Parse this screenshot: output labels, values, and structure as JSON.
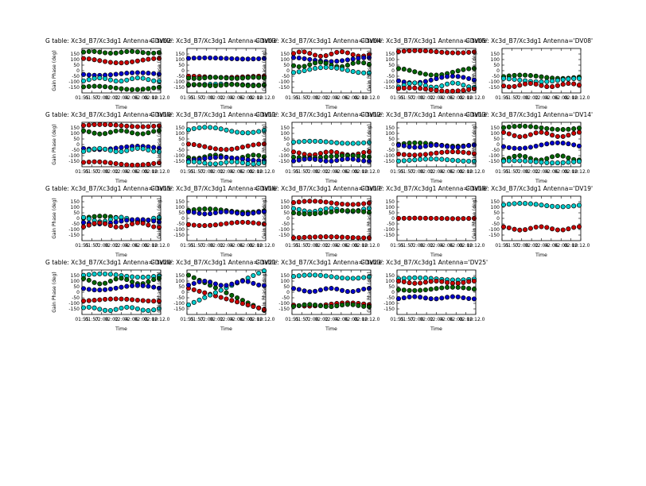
{
  "figure": {
    "background": "#ffffff",
    "series_colors": {
      "red": "#cc0000",
      "blue": "#0000cc",
      "green": "#006600",
      "cyan": "#00cccc"
    }
  },
  "chart_data": {
    "type": "scatter",
    "common": {
      "title_prefix": "G table: Xc3d_B7/Xc3dg1",
      "xlabel": "Time",
      "ylabel": "Gain Phase (deg)",
      "xlim": [
        0,
        1
      ],
      "ylim": [
        -200,
        200
      ],
      "xticks": [
        "01:55",
        "01:57",
        "02:00",
        "02:02",
        "02:04",
        "02:06",
        "02:08",
        "02:10",
        "02:12.0"
      ],
      "yticks": [
        150,
        100,
        50,
        0,
        -50,
        -100,
        -150
      ],
      "grid": false
    },
    "panels": [
      {
        "antenna": "Antenna='DV02'",
        "series": [
          {
            "color": "green",
            "base": 165,
            "amp": 8,
            "freq": 2
          },
          {
            "color": "red",
            "base": 90,
            "amp": 20,
            "freq": 1
          },
          {
            "color": "blue",
            "base": -30,
            "amp": 12,
            "freq": 1
          },
          {
            "color": "cyan",
            "base": -80,
            "amp": 15,
            "freq": 2
          },
          {
            "color": "green",
            "base": -155,
            "amp": 15,
            "freq": 1
          }
        ]
      },
      {
        "antenna": "Antenna='DV03'",
        "series": [
          {
            "color": "blue",
            "base": 110,
            "amp": 5,
            "freq": 1
          },
          {
            "color": "red",
            "base": -55,
            "amp": 6,
            "freq": 1
          },
          {
            "color": "green",
            "base": -65,
            "amp": 5,
            "freq": 2
          },
          {
            "color": "cyan",
            "base": -125,
            "amp": 5,
            "freq": 1
          },
          {
            "color": "green",
            "base": -130,
            "amp": 6,
            "freq": 2
          }
        ]
      },
      {
        "antenna": "Antenna='DV04'",
        "series": [
          {
            "color": "red",
            "base": 150,
            "amp": 20,
            "freq": 2
          },
          {
            "color": "blue",
            "base": 100,
            "amp": 18,
            "freq": 1
          },
          {
            "color": "green",
            "base": 55,
            "amp": 20,
            "freq": 2
          },
          {
            "color": "cyan",
            "base": 5,
            "amp": 25,
            "freq": 1
          }
        ]
      },
      {
        "antenna": "Antenna='DV05'",
        "series": [
          {
            "color": "red",
            "base": 170,
            "amp": 10,
            "freq": 1
          },
          {
            "color": "green",
            "base": -10,
            "amp": 30,
            "freq": 1
          },
          {
            "color": "blue",
            "base": -80,
            "amp": 30,
            "freq": 1
          },
          {
            "color": "cyan",
            "base": -130,
            "amp": 20,
            "freq": 2
          },
          {
            "color": "red",
            "base": -170,
            "amp": 15,
            "freq": 1
          }
        ]
      },
      {
        "antenna": "Antenna='DV08'",
        "series": [
          {
            "color": "green",
            "base": -55,
            "amp": 15,
            "freq": 1
          },
          {
            "color": "cyan",
            "base": -85,
            "amp": 15,
            "freq": 1
          },
          {
            "color": "red",
            "base": -130,
            "amp": 15,
            "freq": 2
          }
        ]
      },
      {
        "antenna": "Antenna='DV10'",
        "series": [
          {
            "color": "red",
            "base": 170,
            "amp": 10,
            "freq": 1
          },
          {
            "color": "green",
            "base": 110,
            "amp": 15,
            "freq": 2
          },
          {
            "color": "blue",
            "base": -30,
            "amp": 15,
            "freq": 1
          },
          {
            "color": "cyan",
            "base": -50,
            "amp": 15,
            "freq": 2
          },
          {
            "color": "red",
            "base": -170,
            "amp": 15,
            "freq": 1
          }
        ]
      },
      {
        "antenna": "Antenna='DV11'",
        "series": [
          {
            "color": "cyan",
            "base": 130,
            "amp": 25,
            "freq": 1
          },
          {
            "color": "red",
            "base": -20,
            "amp": 25,
            "freq": 1
          },
          {
            "color": "green",
            "base": -110,
            "amp": 15,
            "freq": 2
          },
          {
            "color": "blue",
            "base": -130,
            "amp": 15,
            "freq": 1
          },
          {
            "color": "cyan",
            "base": -165,
            "amp": 10,
            "freq": 2
          }
        ]
      },
      {
        "antenna": "Antenna='DV12'",
        "series": [
          {
            "color": "cyan",
            "base": 20,
            "amp": 10,
            "freq": 1
          },
          {
            "color": "red",
            "base": -80,
            "amp": 15,
            "freq": 2
          },
          {
            "color": "green",
            "base": -110,
            "amp": 10,
            "freq": 1
          },
          {
            "color": "blue",
            "base": -140,
            "amp": 10,
            "freq": 2
          }
        ]
      },
      {
        "antenna": "Antenna='DV13'",
        "series": [
          {
            "color": "green",
            "base": 0,
            "amp": 15,
            "freq": 1
          },
          {
            "color": "blue",
            "base": -15,
            "amp": 10,
            "freq": 2
          },
          {
            "color": "red",
            "base": -80,
            "amp": 15,
            "freq": 1
          },
          {
            "color": "cyan",
            "base": -140,
            "amp": 10,
            "freq": 1
          }
        ]
      },
      {
        "antenna": "Antenna='DV14'",
        "series": [
          {
            "color": "green",
            "base": 150,
            "amp": 15,
            "freq": 1
          },
          {
            "color": "red",
            "base": 90,
            "amp": 20,
            "freq": 2
          },
          {
            "color": "blue",
            "base": -10,
            "amp": 25,
            "freq": 1
          },
          {
            "color": "green",
            "base": -120,
            "amp": 20,
            "freq": 2
          },
          {
            "color": "cyan",
            "base": -155,
            "amp": 10,
            "freq": 1
          }
        ]
      },
      {
        "antenna": "Antenna='DV15'",
        "series": [
          {
            "color": "green",
            "base": 0,
            "amp": 20,
            "freq": 1
          },
          {
            "color": "cyan",
            "base": -10,
            "amp": 20,
            "freq": 2
          },
          {
            "color": "blue",
            "base": -30,
            "amp": 20,
            "freq": 1
          },
          {
            "color": "red",
            "base": -60,
            "amp": 20,
            "freq": 2
          }
        ]
      },
      {
        "antenna": "Antenna='DV16'",
        "series": [
          {
            "color": "green",
            "base": 70,
            "amp": 15,
            "freq": 1
          },
          {
            "color": "blue",
            "base": 50,
            "amp": 10,
            "freq": 2
          },
          {
            "color": "red",
            "base": -50,
            "amp": 15,
            "freq": 1
          }
        ]
      },
      {
        "antenna": "Antenna='DV17'",
        "series": [
          {
            "color": "red",
            "base": 140,
            "amp": 15,
            "freq": 1
          },
          {
            "color": "cyan",
            "base": 75,
            "amp": 15,
            "freq": 2
          },
          {
            "color": "green",
            "base": 55,
            "amp": 15,
            "freq": 1
          },
          {
            "color": "red",
            "base": -170,
            "amp": 5,
            "freq": 1
          }
        ]
      },
      {
        "antenna": "Antenna='DV18'",
        "series": [
          {
            "color": "red",
            "base": 0,
            "amp": 2,
            "freq": 1
          }
        ]
      },
      {
        "antenna": "Antenna='DV19'",
        "series": [
          {
            "color": "cyan",
            "base": 120,
            "amp": 15,
            "freq": 1
          },
          {
            "color": "red",
            "base": -90,
            "amp": 15,
            "freq": 2
          }
        ]
      },
      {
        "antenna": "Antenna='DV20'",
        "series": [
          {
            "color": "cyan",
            "base": 150,
            "amp": 15,
            "freq": 1
          },
          {
            "color": "green",
            "base": 100,
            "amp": 25,
            "freq": 2
          },
          {
            "color": "blue",
            "base": 40,
            "amp": 20,
            "freq": 1
          },
          {
            "color": "red",
            "base": -70,
            "amp": 10,
            "freq": 1
          },
          {
            "color": "cyan",
            "base": -150,
            "amp": 15,
            "freq": 2
          }
        ]
      },
      {
        "antenna": "Antenna='DV21'",
        "series": [
          {
            "color": "green",
            "base": 160,
            "slope": -330,
            "freq": 1
          },
          {
            "color": "red",
            "base": 40,
            "slope": -200,
            "freq": 1
          },
          {
            "color": "cyan",
            "base": -120,
            "slope": 320,
            "freq": 1
          },
          {
            "color": "blue",
            "base": 80,
            "amp": 20,
            "freq": 2
          }
        ]
      },
      {
        "antenna": "Antenna='DV23'",
        "series": [
          {
            "color": "cyan",
            "base": 140,
            "amp": 15,
            "freq": 1
          },
          {
            "color": "blue",
            "base": 20,
            "amp": 15,
            "freq": 2
          },
          {
            "color": "red",
            "base": -110,
            "amp": 15,
            "freq": 1
          },
          {
            "color": "green",
            "base": -120,
            "amp": 10,
            "freq": 2
          }
        ]
      },
      {
        "antenna": "Antenna='DV25'",
        "series": [
          {
            "color": "cyan",
            "base": 120,
            "amp": 10,
            "freq": 1
          },
          {
            "color": "red",
            "base": 90,
            "amp": 10,
            "freq": 2
          },
          {
            "color": "green",
            "base": 30,
            "amp": 15,
            "freq": 1
          },
          {
            "color": "blue",
            "base": -50,
            "amp": 10,
            "freq": 2
          }
        ]
      }
    ]
  }
}
